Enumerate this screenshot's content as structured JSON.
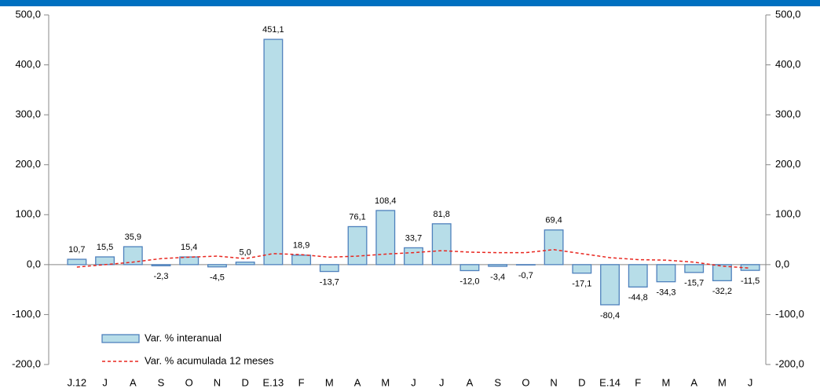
{
  "chart_data": {
    "type": "bar",
    "categories": [
      "J.12",
      "J",
      "A",
      "S",
      "O",
      "N",
      "D",
      "E.13",
      "F",
      "M",
      "A",
      "M",
      "J",
      "J",
      "A",
      "S",
      "O",
      "N",
      "D",
      "E.14",
      "F",
      "M",
      "A",
      "M",
      "J"
    ],
    "series": [
      {
        "name": "Var. % interanual",
        "type": "bar",
        "color": "#b7dde8",
        "edge_color": "#4f81bd",
        "values": [
          10.7,
          15.5,
          35.9,
          -2.3,
          15.4,
          -4.5,
          5.0,
          451.1,
          18.9,
          -13.7,
          76.1,
          108.4,
          33.7,
          81.8,
          -12.0,
          -3.4,
          -0.7,
          69.4,
          -17.1,
          -80.4,
          -44.8,
          -34.3,
          -15.7,
          -32.2,
          -11.5
        ],
        "value_labels": [
          "10,7",
          "15,5",
          "35,9",
          "-2,3",
          "15,4",
          "-4,5",
          "5,0",
          "451,1",
          "18,9",
          "-13,7",
          "76,1",
          "108,4",
          "33,7",
          "81,8",
          "-12,0",
          "-3,4",
          "-0,7",
          "69,4",
          "-17,1",
          "-80,4",
          "-44,8",
          "-34,3",
          "-15,7",
          "-32,2",
          "-11,5"
        ]
      },
      {
        "name": "Var. % acumulada 12 meses",
        "type": "line",
        "color": "#e8261f",
        "dashed": true,
        "values": [
          -5,
          0,
          5,
          12,
          15,
          17,
          12,
          22,
          20,
          15,
          17,
          21,
          24,
          28,
          25,
          24,
          24,
          30,
          22,
          14,
          10,
          9,
          5,
          -3,
          -7
        ]
      }
    ],
    "ylim": [
      -200,
      500
    ],
    "yticks": [
      {
        "value": -200,
        "label": "-200,0"
      },
      {
        "value": -100,
        "label": "-100,0"
      },
      {
        "value": 0,
        "label": "0,0"
      },
      {
        "value": 100,
        "label": "100,0"
      },
      {
        "value": 200,
        "label": "200,0"
      },
      {
        "value": 300,
        "label": "300,0"
      },
      {
        "value": 400,
        "label": "400,0"
      },
      {
        "value": 500,
        "label": "500,0"
      }
    ],
    "legend": "lower left"
  }
}
